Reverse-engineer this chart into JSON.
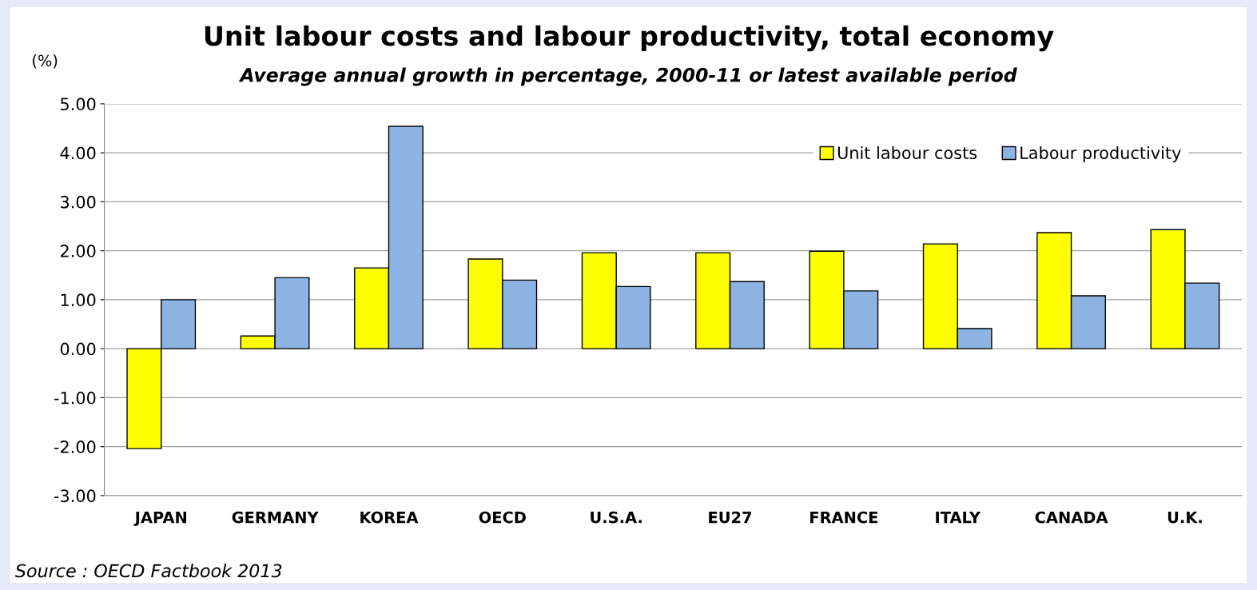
{
  "chart_data": {
    "type": "bar",
    "title": "Unit labour costs and labour productivity, total economy",
    "subtitle": "Average annual growth in percentage, 2000-11 or latest available period",
    "ylabel": "(%)",
    "categories": [
      "JAPAN",
      "GERMANY",
      "KOREA",
      "OECD",
      "U.S.A.",
      "EU27",
      "FRANCE",
      "ITALY",
      "CANADA",
      "U.K."
    ],
    "series": [
      {
        "name": "Unit labour costs",
        "color": "#ffff00",
        "values": [
          -2.04,
          0.26,
          1.65,
          1.83,
          1.96,
          1.96,
          1.99,
          2.14,
          2.37,
          2.43
        ]
      },
      {
        "name": "Labour productivity",
        "color": "#8db3e2",
        "values": [
          1.0,
          1.45,
          4.54,
          1.4,
          1.27,
          1.37,
          1.18,
          0.41,
          1.08,
          1.34
        ]
      }
    ],
    "ylim": [
      -3,
      5
    ],
    "yticks": [
      {
        "value": -3,
        "label": "-3.00"
      },
      {
        "value": -2,
        "label": "-2.00"
      },
      {
        "value": -1,
        "label": "-1.00"
      },
      {
        "value": 0,
        "label": "0.00"
      },
      {
        "value": 1,
        "label": "1.00"
      },
      {
        "value": 2,
        "label": "2.00"
      },
      {
        "value": 3,
        "label": "3.00"
      },
      {
        "value": 4,
        "label": "4.00"
      },
      {
        "value": 5,
        "label": "5.00"
      }
    ],
    "grid": "y",
    "legend": "top right",
    "annotations": [
      "Source : OECD Factbook 2013"
    ]
  }
}
